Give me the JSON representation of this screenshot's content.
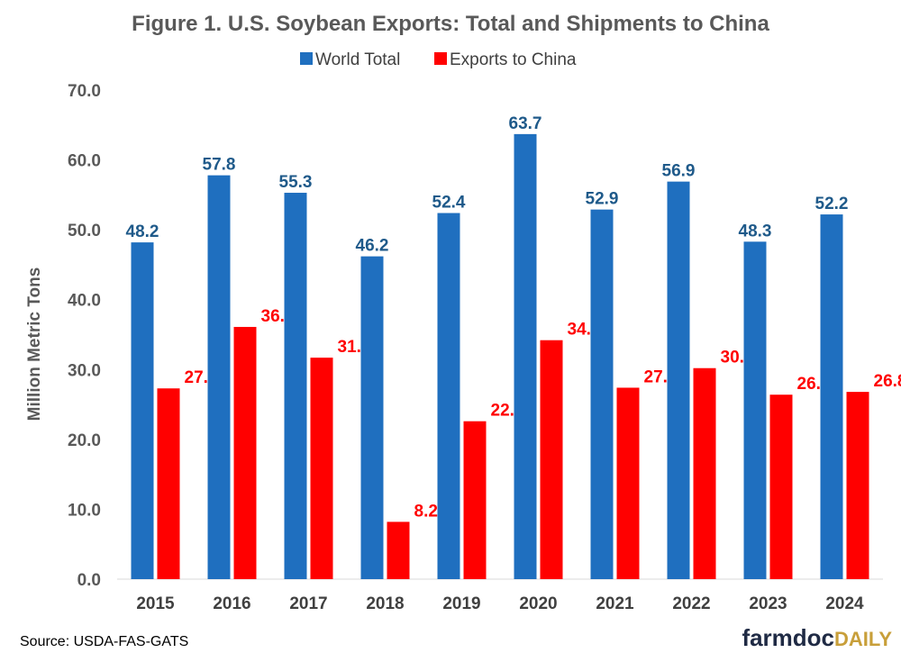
{
  "chart_data": {
    "type": "bar",
    "title": "Figure  1. U.S. Soybean  Exports:  Total and Shipments  to China",
    "ylabel": "Million Metric Tons",
    "xlabel": "",
    "categories": [
      "2015",
      "2016",
      "2017",
      "2018",
      "2019",
      "2020",
      "2021",
      "2022",
      "2023",
      "2024"
    ],
    "series": [
      {
        "name": "World Total",
        "color": "#1f6fbf",
        "label_color": "#1f5a8a",
        "values": [
          48.2,
          57.8,
          55.3,
          46.2,
          52.4,
          63.7,
          52.9,
          56.9,
          48.3,
          52.2
        ]
      },
      {
        "name": "Exports to China",
        "color": "#ff0000",
        "label_color": "#ff0000",
        "values": [
          27.3,
          36.1,
          31.7,
          8.2,
          22.6,
          34.2,
          27.4,
          30.2,
          26.4,
          26.8
        ]
      }
    ],
    "ylim": [
      0,
      70
    ],
    "yticks": [
      "0.0",
      "10.0",
      "20.0",
      "30.0",
      "40.0",
      "50.0",
      "60.0",
      "70.0"
    ],
    "grid": false,
    "legend_position": "top"
  },
  "source": "Source: USDA-FAS-GATS",
  "logo": {
    "part1": "farmdoc",
    "part2": "DAILY"
  }
}
